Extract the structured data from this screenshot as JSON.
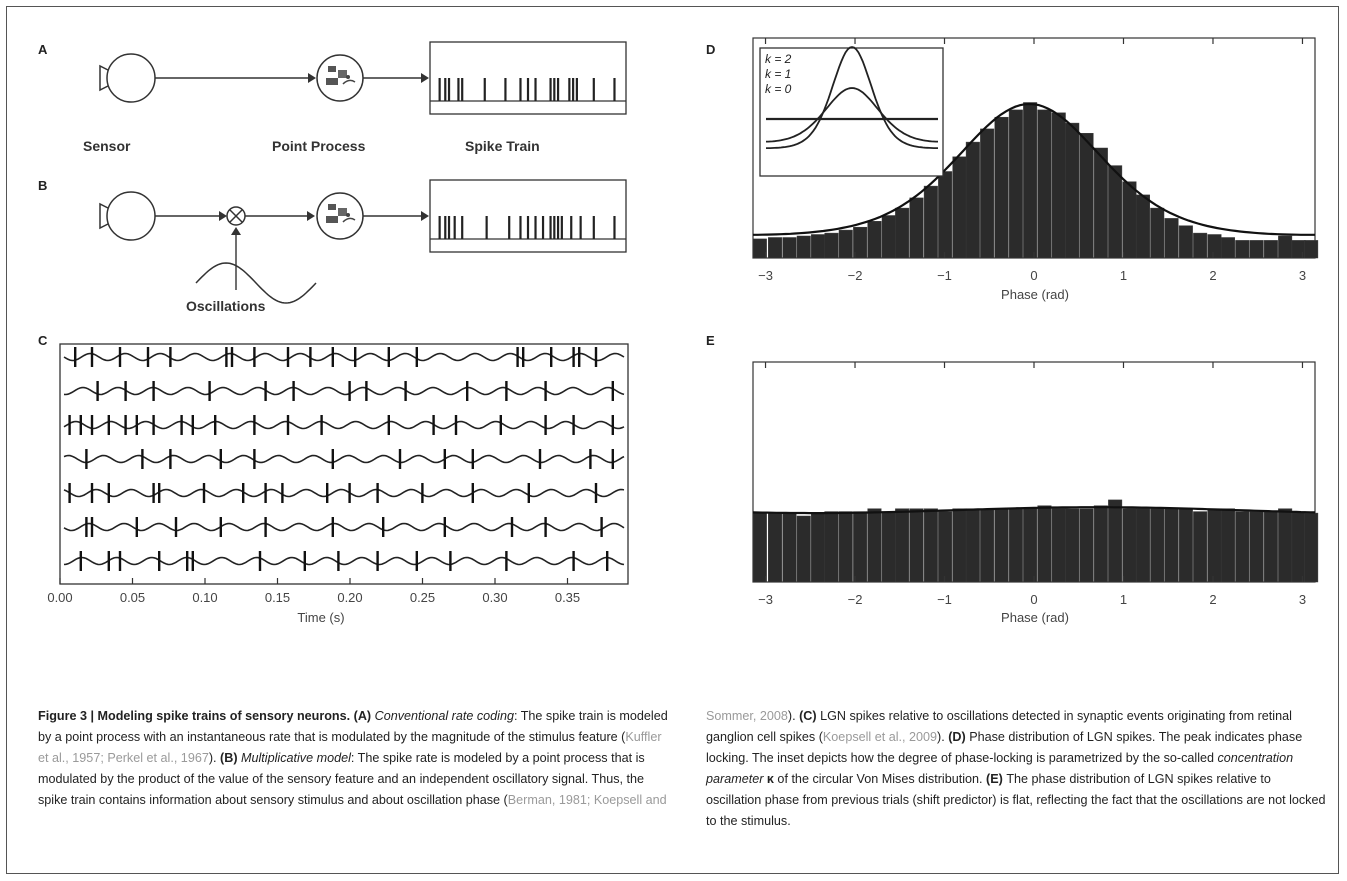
{
  "figure": {
    "panels": {
      "A": {
        "letter": "A",
        "labels": [
          "Sensor",
          "Point Process",
          "Spike Train"
        ],
        "spikes": [
          0.03,
          0.06,
          0.08,
          0.13,
          0.15,
          0.27,
          0.38,
          0.46,
          0.5,
          0.54,
          0.62,
          0.64,
          0.66,
          0.72,
          0.74,
          0.76,
          0.85,
          0.96
        ]
      },
      "B": {
        "letter": "B",
        "oscillation_label": "Oscillations",
        "spikes": [
          0.03,
          0.06,
          0.08,
          0.11,
          0.15,
          0.28,
          0.4,
          0.46,
          0.5,
          0.54,
          0.58,
          0.62,
          0.64,
          0.66,
          0.68,
          0.73,
          0.78,
          0.85,
          0.96
        ]
      },
      "C": {
        "letter": "C",
        "xlabel": "Time (s)",
        "xticks": [
          "0.00",
          "0.05",
          "0.10",
          "0.15",
          "0.20",
          "0.25",
          "0.30",
          "0.35"
        ],
        "trains": [
          [
            0.02,
            0.05,
            0.1,
            0.15,
            0.19,
            0.29,
            0.3,
            0.34,
            0.4,
            0.44,
            0.48,
            0.52,
            0.58,
            0.63,
            0.81,
            0.82,
            0.87,
            0.91,
            0.92,
            0.95
          ],
          [
            0.06,
            0.11,
            0.16,
            0.26,
            0.36,
            0.41,
            0.51,
            0.54,
            0.61,
            0.72,
            0.79,
            0.86,
            0.98
          ],
          [
            0.01,
            0.03,
            0.05,
            0.08,
            0.11,
            0.13,
            0.16,
            0.21,
            0.23,
            0.27,
            0.34,
            0.4,
            0.46,
            0.58,
            0.66,
            0.7,
            0.78,
            0.86,
            0.91,
            0.98
          ],
          [
            0.04,
            0.14,
            0.19,
            0.28,
            0.34,
            0.48,
            0.6,
            0.68,
            0.73,
            0.85,
            0.94,
            0.98
          ],
          [
            0.01,
            0.05,
            0.08,
            0.16,
            0.17,
            0.25,
            0.32,
            0.36,
            0.39,
            0.47,
            0.51,
            0.56,
            0.64,
            0.73,
            0.83,
            0.95
          ],
          [
            0.04,
            0.05,
            0.13,
            0.2,
            0.28,
            0.36,
            0.48,
            0.57,
            0.68,
            0.8,
            0.86,
            0.96
          ],
          [
            0.03,
            0.08,
            0.1,
            0.17,
            0.22,
            0.23,
            0.35,
            0.43,
            0.49,
            0.56,
            0.63,
            0.69,
            0.79,
            0.91,
            0.97
          ]
        ]
      },
      "D": {
        "letter": "D",
        "xlabel": "Phase (rad)",
        "xticks": [
          "−3",
          "−2",
          "−1",
          "0",
          "1",
          "2",
          "3"
        ],
        "legend": [
          "k = 2",
          "k = 1",
          "k = 0"
        ]
      },
      "E": {
        "letter": "E",
        "xlabel": "Phase (rad)",
        "xticks": [
          "−3",
          "−2",
          "−1",
          "0",
          "1",
          "2",
          "3"
        ]
      }
    }
  },
  "chart_data": [
    {
      "type": "bar",
      "panel": "D",
      "xlabel": "Phase (rad)",
      "xlim": [
        -3.14,
        3.14
      ],
      "ylim": [
        0,
        1.5
      ],
      "x": [
        -3.06,
        -2.89,
        -2.73,
        -2.57,
        -2.41,
        -2.26,
        -2.1,
        -1.94,
        -1.78,
        -1.62,
        -1.47,
        -1.31,
        -1.15,
        -0.99,
        -0.83,
        -0.68,
        -0.52,
        -0.36,
        -0.2,
        -0.04,
        0.12,
        0.28,
        0.43,
        0.59,
        0.75,
        0.91,
        1.07,
        1.22,
        1.38,
        1.54,
        1.7,
        1.86,
        2.02,
        2.17,
        2.33,
        2.49,
        2.65,
        2.81,
        2.96,
        3.1
      ],
      "values": [
        0.13,
        0.14,
        0.14,
        0.15,
        0.16,
        0.17,
        0.19,
        0.21,
        0.25,
        0.29,
        0.34,
        0.41,
        0.49,
        0.59,
        0.69,
        0.79,
        0.88,
        0.96,
        1.01,
        1.06,
        1.01,
        0.99,
        0.92,
        0.85,
        0.75,
        0.63,
        0.52,
        0.43,
        0.34,
        0.27,
        0.22,
        0.17,
        0.16,
        0.14,
        0.12,
        0.12,
        0.12,
        0.15,
        0.12,
        0.12
      ],
      "fit": "von Mises curve"
    },
    {
      "type": "bar",
      "panel": "E",
      "xlabel": "Phase (rad)",
      "xlim": [
        -3.14,
        3.14
      ],
      "ylim": [
        0,
        1.5
      ],
      "x": [
        -3.06,
        -2.89,
        -2.73,
        -2.57,
        -2.41,
        -2.26,
        -2.1,
        -1.94,
        -1.78,
        -1.62,
        -1.47,
        -1.31,
        -1.15,
        -0.99,
        -0.83,
        -0.68,
        -0.52,
        -0.36,
        -0.2,
        -0.04,
        0.12,
        0.28,
        0.43,
        0.59,
        0.75,
        0.91,
        1.07,
        1.22,
        1.38,
        1.54,
        1.7,
        1.86,
        2.02,
        2.17,
        2.33,
        2.49,
        2.65,
        2.81,
        2.96,
        3.1
      ],
      "values": [
        0.47,
        0.47,
        0.47,
        0.45,
        0.47,
        0.48,
        0.48,
        0.48,
        0.5,
        0.48,
        0.5,
        0.5,
        0.5,
        0.48,
        0.5,
        0.5,
        0.5,
        0.5,
        0.5,
        0.5,
        0.52,
        0.5,
        0.5,
        0.5,
        0.52,
        0.56,
        0.5,
        0.5,
        0.5,
        0.5,
        0.5,
        0.48,
        0.5,
        0.5,
        0.48,
        0.48,
        0.48,
        0.5,
        0.48,
        0.47
      ]
    }
  ],
  "caption": {
    "left": [
      {
        "t": "Figure 3 | Modeling spike trains of sensory neurons. (A) ",
        "s": "b"
      },
      {
        "t": "Conventional rate coding",
        "s": "i"
      },
      {
        "t": ": The spike train is modeled by a point process with an instantaneous rate that is modulated by the magnitude of the stimulus feature ("
      },
      {
        "t": "Kuffler et al., 1957; Perkel et al., 1967",
        "s": "c"
      },
      {
        "t": "). "
      },
      {
        "t": "(B) ",
        "s": "b"
      },
      {
        "t": "Multiplicative model",
        "s": "i"
      },
      {
        "t": ": The spike rate is modeled by a point process that is modulated by the product of the value of the sensory feature and an independent oscillatory signal. Thus, the spike train contains information about sensory stimulus and about oscillation phase ("
      },
      {
        "t": "Berman, 1981; Koepsell and",
        "s": "c"
      }
    ],
    "right": [
      {
        "t": "Sommer, 2008",
        "s": "c"
      },
      {
        "t": "). "
      },
      {
        "t": "(C) ",
        "s": "b"
      },
      {
        "t": "LGN spikes relative to oscillations detected in synaptic events originating from retinal ganglion cell spikes ("
      },
      {
        "t": "Koepsell et al., 2009",
        "s": "c"
      },
      {
        "t": "). "
      },
      {
        "t": "(D) ",
        "s": "b"
      },
      {
        "t": "Phase distribution of LGN spikes. The peak indicates phase locking. The inset depicts how the degree of phase-locking is parametrized by the so-called "
      },
      {
        "t": "concentration parameter",
        "s": "i"
      },
      {
        "t": " κ",
        "s": "b"
      },
      {
        "t": " of the circular Von Mises distribution. "
      },
      {
        "t": "(E) ",
        "s": "b"
      },
      {
        "t": "The phase distribution of LGN spikes relative to oscillation phase from previous trials (shift predictor) is flat, reflecting the fact that the oscillations are not locked to the stimulus."
      }
    ]
  }
}
